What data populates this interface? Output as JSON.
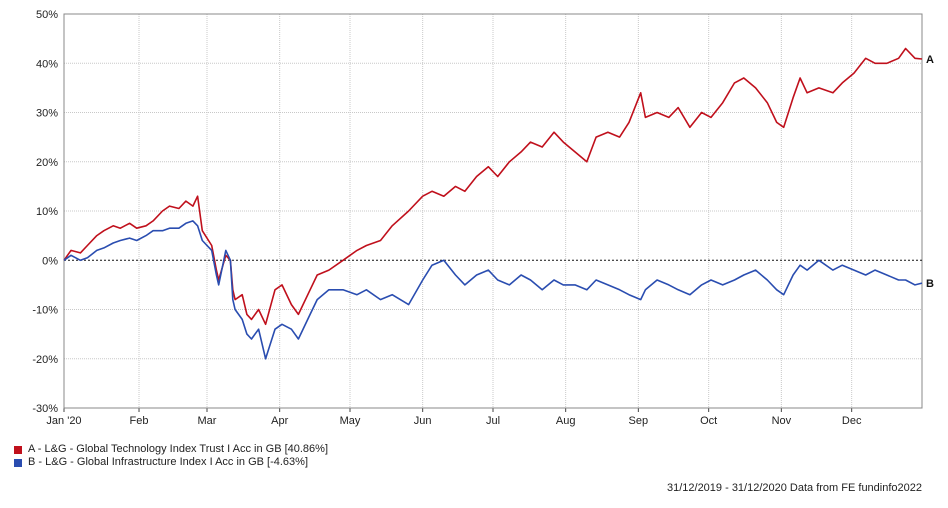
{
  "chart_data": {
    "type": "line",
    "x_tick_labels": [
      "Jan '20",
      "Feb",
      "Mar",
      "Apr",
      "May",
      "Jun",
      "Jul",
      "Aug",
      "Sep",
      "Oct",
      "Nov",
      "Dec"
    ],
    "y_tick_labels": [
      "50%",
      "40%",
      "30%",
      "20%",
      "10%",
      "0%",
      "-10%",
      "-20%",
      "-30%"
    ],
    "ylim": [
      -30,
      50
    ],
    "xlim": [
      "2019-12-31",
      "2020-12-31"
    ],
    "grid": true,
    "legend_position": "bottom-left",
    "series": [
      {
        "name": "A - L&G - Global Technology Index Trust I Acc in GB [40.86%]",
        "end_label": "A",
        "color": "#c0101c",
        "points": [
          [
            "2019-12-31",
            0
          ],
          [
            "2020-01-03",
            2
          ],
          [
            "2020-01-07",
            1.5
          ],
          [
            "2020-01-10",
            3
          ],
          [
            "2020-01-14",
            5
          ],
          [
            "2020-01-17",
            6
          ],
          [
            "2020-01-21",
            7
          ],
          [
            "2020-01-24",
            6.5
          ],
          [
            "2020-01-28",
            7.5
          ],
          [
            "2020-01-31",
            6.5
          ],
          [
            "2020-02-04",
            7
          ],
          [
            "2020-02-07",
            8
          ],
          [
            "2020-02-11",
            10
          ],
          [
            "2020-02-14",
            11
          ],
          [
            "2020-02-18",
            10.5
          ],
          [
            "2020-02-21",
            12
          ],
          [
            "2020-02-24",
            11
          ],
          [
            "2020-02-26",
            13
          ],
          [
            "2020-02-28",
            6
          ],
          [
            "2020-03-03",
            3
          ],
          [
            "2020-03-05",
            -2
          ],
          [
            "2020-03-06",
            -4
          ],
          [
            "2020-03-09",
            1
          ],
          [
            "2020-03-11",
            0
          ],
          [
            "2020-03-12",
            -6
          ],
          [
            "2020-03-13",
            -8
          ],
          [
            "2020-03-16",
            -7
          ],
          [
            "2020-03-18",
            -11
          ],
          [
            "2020-03-20",
            -12
          ],
          [
            "2020-03-23",
            -10
          ],
          [
            "2020-03-26",
            -13
          ],
          [
            "2020-03-30",
            -6
          ],
          [
            "2020-04-02",
            -5
          ],
          [
            "2020-04-06",
            -9
          ],
          [
            "2020-04-09",
            -11
          ],
          [
            "2020-04-14",
            -6
          ],
          [
            "2020-04-17",
            -3
          ],
          [
            "2020-04-22",
            -2
          ],
          [
            "2020-04-28",
            0
          ],
          [
            "2020-05-04",
            2
          ],
          [
            "2020-05-08",
            3
          ],
          [
            "2020-05-14",
            4
          ],
          [
            "2020-05-19",
            7
          ],
          [
            "2020-05-26",
            10
          ],
          [
            "2020-06-01",
            13
          ],
          [
            "2020-06-05",
            14
          ],
          [
            "2020-06-10",
            13
          ],
          [
            "2020-06-15",
            15
          ],
          [
            "2020-06-19",
            14
          ],
          [
            "2020-06-24",
            17
          ],
          [
            "2020-06-29",
            19
          ],
          [
            "2020-07-03",
            17
          ],
          [
            "2020-07-08",
            20
          ],
          [
            "2020-07-13",
            22
          ],
          [
            "2020-07-17",
            24
          ],
          [
            "2020-07-22",
            23
          ],
          [
            "2020-07-27",
            26
          ],
          [
            "2020-07-31",
            24
          ],
          [
            "2020-08-05",
            22
          ],
          [
            "2020-08-10",
            20
          ],
          [
            "2020-08-14",
            25
          ],
          [
            "2020-08-19",
            26
          ],
          [
            "2020-08-24",
            25
          ],
          [
            "2020-08-28",
            28
          ],
          [
            "2020-09-02",
            34
          ],
          [
            "2020-09-04",
            29
          ],
          [
            "2020-09-09",
            30
          ],
          [
            "2020-09-14",
            29
          ],
          [
            "2020-09-18",
            31
          ],
          [
            "2020-09-23",
            27
          ],
          [
            "2020-09-28",
            30
          ],
          [
            "2020-10-02",
            29
          ],
          [
            "2020-10-07",
            32
          ],
          [
            "2020-10-12",
            36
          ],
          [
            "2020-10-16",
            37
          ],
          [
            "2020-10-21",
            35
          ],
          [
            "2020-10-26",
            32
          ],
          [
            "2020-10-30",
            28
          ],
          [
            "2020-11-02",
            27
          ],
          [
            "2020-11-06",
            33
          ],
          [
            "2020-11-09",
            37
          ],
          [
            "2020-11-12",
            34
          ],
          [
            "2020-11-17",
            35
          ],
          [
            "2020-11-23",
            34
          ],
          [
            "2020-11-27",
            36
          ],
          [
            "2020-12-02",
            38
          ],
          [
            "2020-12-07",
            41
          ],
          [
            "2020-12-11",
            40
          ],
          [
            "2020-12-16",
            40
          ],
          [
            "2020-12-21",
            41
          ],
          [
            "2020-12-24",
            43
          ],
          [
            "2020-12-28",
            41
          ],
          [
            "2020-12-31",
            40.86
          ]
        ]
      },
      {
        "name": "B - L&G - Global Infrastructure Index I Acc in GB [-4.63%]",
        "end_label": "B",
        "color": "#2a4db0",
        "points": [
          [
            "2019-12-31",
            0
          ],
          [
            "2020-01-03",
            1
          ],
          [
            "2020-01-07",
            0
          ],
          [
            "2020-01-10",
            0.5
          ],
          [
            "2020-01-14",
            2
          ],
          [
            "2020-01-17",
            2.5
          ],
          [
            "2020-01-21",
            3.5
          ],
          [
            "2020-01-24",
            4
          ],
          [
            "2020-01-28",
            4.5
          ],
          [
            "2020-01-31",
            4
          ],
          [
            "2020-02-04",
            5
          ],
          [
            "2020-02-07",
            6
          ],
          [
            "2020-02-11",
            6
          ],
          [
            "2020-02-14",
            6.5
          ],
          [
            "2020-02-18",
            6.5
          ],
          [
            "2020-02-21",
            7.5
          ],
          [
            "2020-02-24",
            8
          ],
          [
            "2020-02-26",
            7
          ],
          [
            "2020-02-28",
            4
          ],
          [
            "2020-03-03",
            2
          ],
          [
            "2020-03-05",
            -3
          ],
          [
            "2020-03-06",
            -5
          ],
          [
            "2020-03-09",
            2
          ],
          [
            "2020-03-11",
            0
          ],
          [
            "2020-03-12",
            -8
          ],
          [
            "2020-03-13",
            -10
          ],
          [
            "2020-03-16",
            -12
          ],
          [
            "2020-03-18",
            -15
          ],
          [
            "2020-03-20",
            -16
          ],
          [
            "2020-03-23",
            -14
          ],
          [
            "2020-03-26",
            -20
          ],
          [
            "2020-03-30",
            -14
          ],
          [
            "2020-04-02",
            -13
          ],
          [
            "2020-04-06",
            -14
          ],
          [
            "2020-04-09",
            -16
          ],
          [
            "2020-04-14",
            -11
          ],
          [
            "2020-04-17",
            -8
          ],
          [
            "2020-04-22",
            -6
          ],
          [
            "2020-04-28",
            -6
          ],
          [
            "2020-05-04",
            -7
          ],
          [
            "2020-05-08",
            -6
          ],
          [
            "2020-05-14",
            -8
          ],
          [
            "2020-05-19",
            -7
          ],
          [
            "2020-05-26",
            -9
          ],
          [
            "2020-06-01",
            -4
          ],
          [
            "2020-06-05",
            -1
          ],
          [
            "2020-06-10",
            0
          ],
          [
            "2020-06-15",
            -3
          ],
          [
            "2020-06-19",
            -5
          ],
          [
            "2020-06-24",
            -3
          ],
          [
            "2020-06-29",
            -2
          ],
          [
            "2020-07-03",
            -4
          ],
          [
            "2020-07-08",
            -5
          ],
          [
            "2020-07-13",
            -3
          ],
          [
            "2020-07-17",
            -4
          ],
          [
            "2020-07-22",
            -6
          ],
          [
            "2020-07-27",
            -4
          ],
          [
            "2020-07-31",
            -5
          ],
          [
            "2020-08-05",
            -5
          ],
          [
            "2020-08-10",
            -6
          ],
          [
            "2020-08-14",
            -4
          ],
          [
            "2020-08-19",
            -5
          ],
          [
            "2020-08-24",
            -6
          ],
          [
            "2020-08-28",
            -7
          ],
          [
            "2020-09-02",
            -8
          ],
          [
            "2020-09-04",
            -6
          ],
          [
            "2020-09-09",
            -4
          ],
          [
            "2020-09-14",
            -5
          ],
          [
            "2020-09-18",
            -6
          ],
          [
            "2020-09-23",
            -7
          ],
          [
            "2020-09-28",
            -5
          ],
          [
            "2020-10-02",
            -4
          ],
          [
            "2020-10-07",
            -5
          ],
          [
            "2020-10-12",
            -4
          ],
          [
            "2020-10-16",
            -3
          ],
          [
            "2020-10-21",
            -2
          ],
          [
            "2020-10-26",
            -4
          ],
          [
            "2020-10-30",
            -6
          ],
          [
            "2020-11-02",
            -7
          ],
          [
            "2020-11-06",
            -3
          ],
          [
            "2020-11-09",
            -1
          ],
          [
            "2020-11-12",
            -2
          ],
          [
            "2020-11-17",
            0
          ],
          [
            "2020-11-23",
            -2
          ],
          [
            "2020-11-27",
            -1
          ],
          [
            "2020-12-02",
            -2
          ],
          [
            "2020-12-07",
            -3
          ],
          [
            "2020-12-11",
            -2
          ],
          [
            "2020-12-16",
            -3
          ],
          [
            "2020-12-21",
            -4
          ],
          [
            "2020-12-24",
            -4
          ],
          [
            "2020-12-28",
            -5
          ],
          [
            "2020-12-31",
            -4.63
          ]
        ]
      }
    ]
  },
  "legend": {
    "items": [
      {
        "label": "A - L&G - Global Technology Index Trust I Acc in GB [40.86%]",
        "color": "#c0101c"
      },
      {
        "label": "B - L&G - Global Infrastructure Index I Acc in GB [-4.63%]",
        "color": "#2a4db0"
      }
    ]
  },
  "footer": {
    "date_range": "31/12/2019 - 31/12/2020 Data from FE fundinfo2022"
  }
}
